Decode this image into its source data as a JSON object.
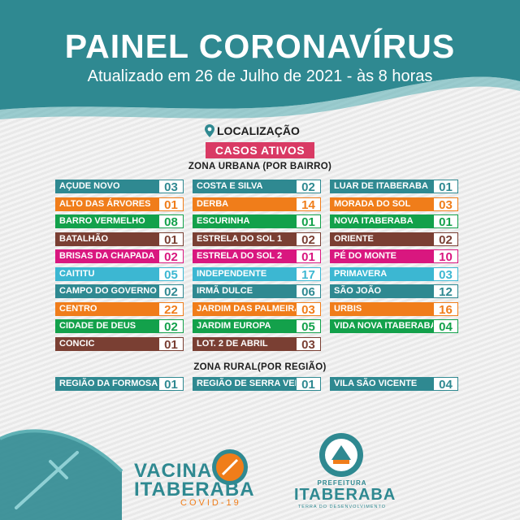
{
  "header": {
    "title": "PAINEL CORONAVÍRUS",
    "subtitle": "Atualizado em 26 de Julho de 2021 - às 8 horas"
  },
  "location_label": "LOCALIZAÇÃO",
  "badge": "CASOS ATIVOS",
  "urban": {
    "title": "ZONA URBANA (POR BAIRRO)",
    "col1": [
      {
        "name": "AÇUDE NOVO",
        "value": "03",
        "color": "teal"
      },
      {
        "name": "ALTO DAS ÁRVORES",
        "value": "01",
        "color": "orange"
      },
      {
        "name": "BARRO VERMELHO",
        "value": "08",
        "color": "green"
      },
      {
        "name": "BATALHÃO",
        "value": "01",
        "color": "brown"
      },
      {
        "name": "BRISAS DA CHAPADA",
        "value": "02",
        "color": "pink"
      },
      {
        "name": "CAITITU",
        "value": "05",
        "color": "cyan"
      },
      {
        "name": "CAMPO DO GOVERNO",
        "value": "02",
        "color": "teal"
      },
      {
        "name": "CENTRO",
        "value": "22",
        "color": "orange"
      },
      {
        "name": "CIDADE DE DEUS",
        "value": "02",
        "color": "green"
      },
      {
        "name": "CONCIC",
        "value": "01",
        "color": "brown"
      }
    ],
    "col2": [
      {
        "name": "COSTA E SILVA",
        "value": "02",
        "color": "teal"
      },
      {
        "name": "DERBA",
        "value": "14",
        "color": "orange"
      },
      {
        "name": "ESCURINHA",
        "value": "01",
        "color": "green"
      },
      {
        "name": "ESTRELA DO SOL 1",
        "value": "02",
        "color": "brown"
      },
      {
        "name": "ESTRELA DO SOL 2",
        "value": "01",
        "color": "pink"
      },
      {
        "name": "INDEPENDENTE",
        "value": "17",
        "color": "cyan"
      },
      {
        "name": "IRMÃ DULCE",
        "value": "06",
        "color": "teal"
      },
      {
        "name": "JARDIM DAS PALMEIRAS",
        "value": "03",
        "color": "orange"
      },
      {
        "name": "JARDIM EUROPA",
        "value": "05",
        "color": "green"
      },
      {
        "name": "LOT. 2 DE ABRIL",
        "value": "03",
        "color": "brown"
      }
    ],
    "col3": [
      {
        "name": "LUAR DE ITABERABA",
        "value": "01",
        "color": "teal"
      },
      {
        "name": "MORADA DO SOL",
        "value": "03",
        "color": "orange"
      },
      {
        "name": "NOVA ITABERABA",
        "value": "01",
        "color": "green"
      },
      {
        "name": "ORIENTE",
        "value": "02",
        "color": "brown"
      },
      {
        "name": "PÉ DO MONTE",
        "value": "10",
        "color": "pink"
      },
      {
        "name": "PRIMAVERA",
        "value": "03",
        "color": "cyan"
      },
      {
        "name": "SÃO JOÃO",
        "value": "12",
        "color": "teal"
      },
      {
        "name": "URBIS",
        "value": "16",
        "color": "orange"
      },
      {
        "name": "VIDA NOVA ITABERABA",
        "value": "04",
        "color": "green"
      }
    ]
  },
  "rural": {
    "title": "ZONA RURAL(POR REGIÃO)",
    "items": [
      {
        "name": "REGIÃO DA FORMOSA",
        "value": "01",
        "color": "teal"
      },
      {
        "name": "REGIÃO DE SERRA VERDE",
        "value": "01",
        "color": "teal"
      },
      {
        "name": "VILA SÃO VICENTE",
        "value": "04",
        "color": "teal"
      }
    ]
  },
  "footer": {
    "vacina": "VACINA",
    "vacina_city": "ITABERABA",
    "vacina_sub": "COVID-19",
    "pref": "PREFEITURA",
    "pref_city": "ITABERABA",
    "pref_motto": "TERRA DO DESENVOLVIMENTO"
  }
}
